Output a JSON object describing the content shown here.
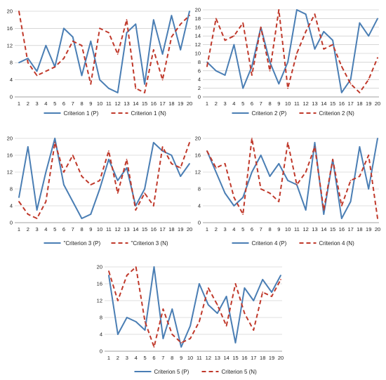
{
  "colors": {
    "p": "#4a7eb4",
    "n": "#c0392b",
    "grid": "#bfbfbf",
    "axis": "#808080"
  },
  "chart_data": [
    {
      "type": "line",
      "x": [
        1,
        2,
        3,
        4,
        5,
        6,
        7,
        8,
        9,
        10,
        11,
        12,
        13,
        14,
        15,
        16,
        17,
        18,
        19,
        20
      ],
      "ylim": [
        0,
        20
      ],
      "yticks": [
        0,
        4,
        8,
        12,
        16,
        20
      ],
      "grid": "horizontal",
      "legend": "bottom",
      "series": [
        {
          "name": "Criterion 1 (P)",
          "style": "solid",
          "values": [
            8,
            9,
            6,
            12,
            7,
            16,
            14,
            5,
            13,
            4,
            2,
            1,
            15,
            17,
            3,
            18,
            10,
            19,
            11,
            20
          ]
        },
        {
          "name": "Criterion 1 (N)",
          "style": "dashed",
          "values": [
            20,
            8,
            5,
            6,
            7,
            9,
            13,
            12,
            3,
            16,
            15,
            10,
            18,
            2,
            1,
            11,
            4,
            14,
            17,
            19
          ]
        }
      ]
    },
    {
      "type": "line",
      "x": [
        1,
        2,
        3,
        4,
        5,
        6,
        7,
        8,
        9,
        10,
        11,
        12,
        13,
        14,
        15,
        16,
        17,
        18,
        19,
        20
      ],
      "ylim": [
        0,
        20
      ],
      "yticks": [
        0,
        2,
        4,
        6,
        8,
        10,
        12,
        14,
        16,
        18,
        20
      ],
      "grid": "horizontal",
      "legend": "bottom",
      "series": [
        {
          "name": "Criterion 2 (P)",
          "style": "solid",
          "values": [
            8,
            6,
            5,
            12,
            2,
            7,
            16,
            8,
            3,
            8,
            20,
            19,
            11,
            15,
            13,
            1,
            4,
            17,
            14,
            18
          ]
        },
        {
          "name": "Criterion 2 (N)",
          "style": "dashed",
          "values": [
            7,
            18,
            13,
            14,
            17,
            5,
            16,
            6,
            20,
            2,
            10,
            15,
            19,
            11,
            12,
            7,
            3,
            1,
            4,
            9
          ]
        }
      ]
    },
    {
      "type": "line",
      "x": [
        1,
        2,
        3,
        4,
        5,
        6,
        7,
        8,
        9,
        10,
        11,
        12,
        13,
        14,
        15,
        16,
        17,
        18,
        19,
        20
      ],
      "ylim": [
        0,
        20
      ],
      "yticks": [
        0,
        4,
        8,
        12,
        16,
        20
      ],
      "grid": "horizontal",
      "legend": "bottom",
      "series": [
        {
          "name": "\"Criterion 3 (P)",
          "style": "solid",
          "values": [
            6,
            18,
            3,
            12,
            20,
            9,
            5,
            1,
            2,
            8,
            15,
            10,
            13,
            4,
            8,
            19,
            17,
            16,
            11,
            14
          ]
        },
        {
          "name": "\"Criterion 3 (N)",
          "style": "dashed",
          "values": [
            5,
            2,
            1,
            5,
            19,
            12,
            16,
            11,
            9,
            10,
            17,
            7,
            15,
            3,
            7,
            4,
            18,
            14,
            13,
            19
          ]
        }
      ]
    },
    {
      "type": "line",
      "x": [
        1,
        2,
        3,
        4,
        5,
        6,
        7,
        8,
        9,
        10,
        11,
        12,
        13,
        14,
        15,
        16,
        17,
        18,
        19,
        20
      ],
      "ylim": [
        0,
        20
      ],
      "yticks": [
        0,
        4,
        8,
        12,
        16,
        20
      ],
      "grid": "horizontal",
      "legend": "bottom",
      "series": [
        {
          "name": "Criterion 4 (P)",
          "style": "solid",
          "values": [
            17,
            12,
            7,
            4,
            6,
            12,
            16,
            11,
            14,
            10,
            9,
            3,
            19,
            2,
            15,
            1,
            5,
            18,
            8,
            20
          ]
        },
        {
          "name": "Criterion 4 (N)",
          "style": "dashed",
          "values": [
            17,
            13,
            14,
            6,
            2,
            20,
            8,
            7,
            5,
            19,
            9,
            12,
            18,
            3,
            15,
            4,
            10,
            11,
            16,
            1
          ]
        }
      ]
    },
    {
      "type": "line",
      "x": [
        1,
        2,
        3,
        4,
        5,
        6,
        7,
        8,
        9,
        10,
        11,
        12,
        13,
        14,
        15,
        16,
        17,
        18,
        19,
        20
      ],
      "ylim": [
        0,
        20
      ],
      "yticks": [
        0,
        4,
        8,
        12,
        16,
        20
      ],
      "grid": "horizontal",
      "legend": "bottom",
      "series": [
        {
          "name": "Criterion 5 (P)",
          "style": "solid",
          "values": [
            18,
            4,
            8,
            7,
            5,
            20,
            3,
            10,
            1,
            6,
            16,
            11,
            9,
            13,
            2,
            15,
            12,
            17,
            14,
            18
          ]
        },
        {
          "name": "Criterion 5 (N)",
          "style": "dashed",
          "values": [
            19,
            12,
            18,
            20,
            7,
            1,
            10,
            4,
            2,
            3,
            7,
            15,
            11,
            6,
            16,
            9,
            5,
            14,
            13,
            17
          ]
        }
      ]
    }
  ]
}
